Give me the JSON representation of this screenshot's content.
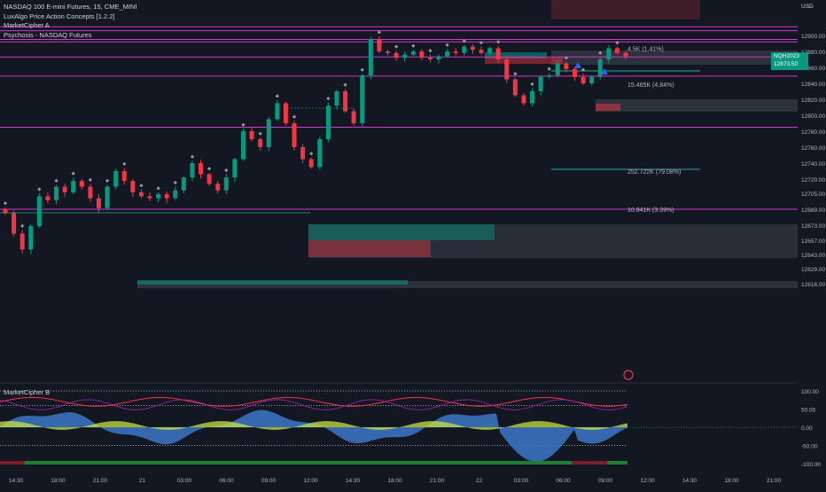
{
  "legend": {
    "symbol": "NASDAQ 100 E-mini Futures, 15, CME_MINI",
    "indicators": [
      "LuxAlgo Price Action Concepts [1.2.2]",
      "MarketCipher A",
      "Psychosis - NASDAQ Futures"
    ]
  },
  "oscillator": {
    "name": "MarketCipher B"
  },
  "currency": "USD",
  "price_badge": {
    "ticker": "NQH2023",
    "price": "12873.50",
    "countdown": "12:45"
  },
  "zone_labels": [
    {
      "text": "4.5K (1.41%)",
      "price": 12884
    },
    {
      "text": "15.465K (4.84%)",
      "price": 12839
    },
    {
      "text": "252.722K (79.08%)",
      "price": 12730
    },
    {
      "text": "10.841K (3.39%)",
      "price": 12689
    }
  ],
  "colors": {
    "background": "#131722",
    "up": "#089981",
    "down": "#f23645",
    "magenta": "#d237d2",
    "wave_blue": "#3d77c9",
    "money_flow": "#c8e03f"
  },
  "chart_data": {
    "type": "candlestick",
    "price_axis": {
      "min": 12600,
      "max": 12920,
      "ticks": [
        12900.0,
        12880.0,
        12860.0,
        12840.0,
        12820.0,
        12800.0,
        12780.0,
        12760.0,
        12740.0,
        12720.0,
        12705.0,
        12689.0,
        12673.0,
        12657.0,
        12643.0,
        12629.0,
        12616.0
      ]
    },
    "osc_axis": {
      "min": -110,
      "max": 110,
      "ticks": [
        100.0,
        50.0,
        0.0,
        -50.0,
        -100.0
      ]
    },
    "time_labels": [
      "14:30",
      "18:00",
      "21:00",
      "21",
      "03:00",
      "06:00",
      "09:00",
      "12:00",
      "14:30",
      "18:00",
      "21:00",
      "22",
      "03:00",
      "06:00",
      "09:00",
      "12:00",
      "14:30",
      "18:00",
      "21:00"
    ],
    "horizontal_levels": [
      {
        "price": 12911,
        "color": "#d237d2"
      },
      {
        "price": 12906,
        "color": "#d237d2"
      },
      {
        "price": 12895,
        "color": "#d237d2"
      },
      {
        "price": 12892,
        "color": "#d237d2"
      },
      {
        "price": 12873,
        "color": "#d237d2"
      },
      {
        "price": 12849,
        "color": "#d237d2"
      },
      {
        "price": 12785,
        "color": "#d237d2"
      },
      {
        "price": 12689,
        "color": "#d237d2"
      }
    ],
    "close_path": [
      12685,
      12664,
      12648,
      12672,
      12702,
      12698,
      12712,
      12706,
      12718,
      12712,
      12700,
      12690,
      12712,
      12730,
      12718,
      12706,
      12702,
      12700,
      12704,
      12700,
      12708,
      12722,
      12740,
      12726,
      12715,
      12708,
      12722,
      12745,
      12780,
      12770,
      12760,
      12795,
      12815,
      12790,
      12760,
      12745,
      12735,
      12770,
      12812,
      12830,
      12805,
      12790,
      12850,
      12895,
      12880,
      12878,
      12872,
      12876,
      12880,
      12872,
      12870,
      12874,
      12880,
      12878,
      12886,
      12882,
      12878,
      12884,
      12870,
      12845,
      12825,
      12815,
      12830,
      12848,
      12850,
      12865,
      12858,
      12848,
      12840,
      12848,
      12870,
      12884,
      12878,
      12873.5
    ],
    "oscillator_ticks_shown": true
  }
}
